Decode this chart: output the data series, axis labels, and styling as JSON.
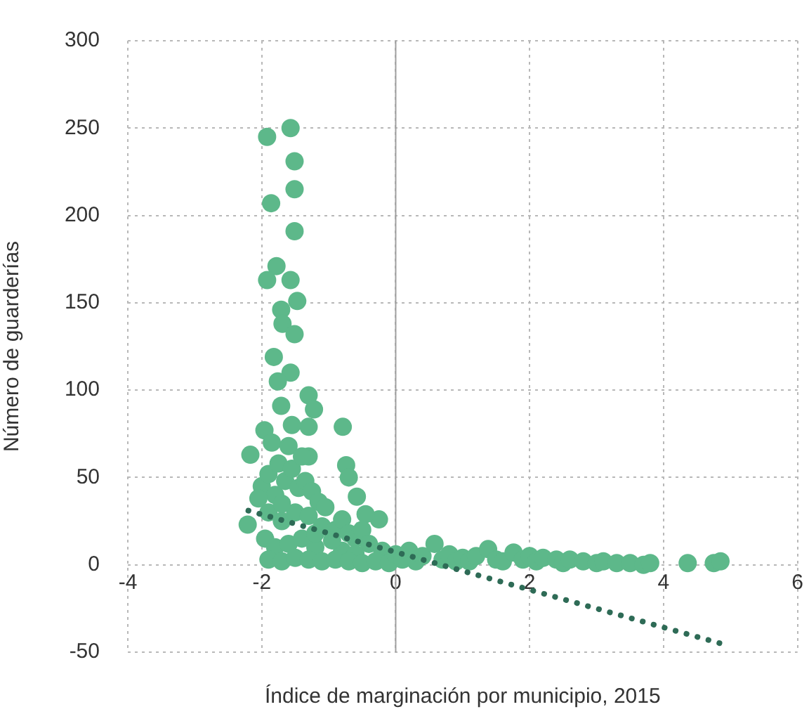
{
  "chart_data": {
    "type": "scatter",
    "xlabel": "Índice de marginación por municipio, 2015",
    "ylabel": "Número de guarderías",
    "xlim": [
      -4,
      6
    ],
    "xticks": [
      -4,
      -2,
      0,
      2,
      4,
      6
    ],
    "ylim": [
      -50,
      300
    ],
    "yticks": [
      -50,
      0,
      50,
      100,
      150,
      200,
      250,
      300
    ],
    "grid": true,
    "marker": "circle",
    "ref_lines": [
      {
        "axis": "x",
        "value": 0,
        "color": "#a0a0a0"
      }
    ],
    "series": [
      {
        "type": "scatter",
        "color": "#5db88a",
        "x": [
          -1.92,
          -1.57,
          -1.51,
          -1.51,
          -1.86,
          -1.51,
          -1.78,
          -1.92,
          -1.57,
          -1.47,
          -1.71,
          -1.69,
          -1.51,
          -1.82,
          -1.57,
          -1.76,
          -1.3,
          -1.22,
          -1.71,
          -1.3,
          -0.79,
          -1.96,
          -2.17,
          -1.3,
          -0.74,
          -0.7,
          -0.58,
          -0.25,
          -2.21,
          -0.45,
          -2.0,
          -1.9,
          -1.8,
          -1.75,
          -1.65,
          -1.55,
          -1.45,
          -1.35,
          -1.25,
          -1.15,
          -1.05,
          -1.9,
          -1.7,
          -1.5,
          -1.3,
          -1.1,
          -0.9,
          -0.8,
          -0.7,
          -0.6,
          -0.5,
          -0.4,
          -0.2,
          -1.95,
          -1.8,
          -1.6,
          -1.4,
          -1.2,
          -0.8,
          -0.6,
          -1.9,
          -1.7,
          -1.5,
          -1.3,
          -1.1,
          -0.9,
          -0.7,
          -0.5,
          -0.3,
          -0.1,
          -1.85,
          -1.6,
          -1.4,
          -1.55,
          -1.7,
          -2.05,
          -1.2,
          -0.95,
          0.0,
          0.1,
          0.2,
          0.3,
          0.4,
          0.58,
          0.7,
          0.8,
          0.9,
          1.0,
          1.1,
          1.2,
          1.38,
          1.5,
          1.6,
          1.76,
          1.9,
          2.0,
          2.1,
          2.2,
          2.4,
          2.5,
          2.6,
          2.8,
          3.0,
          3.1,
          3.3,
          3.5,
          3.7,
          3.8,
          4.36,
          4.75,
          4.85
        ],
        "values": [
          245,
          250,
          231,
          215,
          207,
          191,
          171,
          163,
          163,
          151,
          146,
          138,
          132,
          119,
          110,
          105,
          97,
          89,
          91,
          79,
          79,
          77,
          63,
          62,
          57,
          50,
          39,
          26,
          23,
          29,
          45,
          52,
          40,
          58,
          48,
          55,
          44,
          48,
          42,
          36,
          33,
          30,
          25,
          30,
          28,
          22,
          20,
          26,
          18,
          15,
          20,
          12,
          8,
          15,
          10,
          12,
          15,
          10,
          8,
          6,
          3,
          2,
          4,
          3,
          2,
          3,
          2,
          1,
          2,
          1,
          70,
          68,
          62,
          80,
          35,
          38,
          18,
          14,
          6,
          3,
          8,
          2,
          5,
          12,
          3,
          6,
          2,
          4,
          2,
          5,
          9,
          3,
          2,
          7,
          3,
          5,
          2,
          4,
          3,
          1,
          3,
          2,
          1,
          2,
          1,
          1,
          0,
          1,
          1,
          1,
          2
        ]
      },
      {
        "type": "line",
        "color": "#2e6b56",
        "line_style": "dotted",
        "marker": "none",
        "x": [
          -2.2,
          4.85
        ],
        "values": [
          31,
          -45
        ]
      }
    ]
  }
}
